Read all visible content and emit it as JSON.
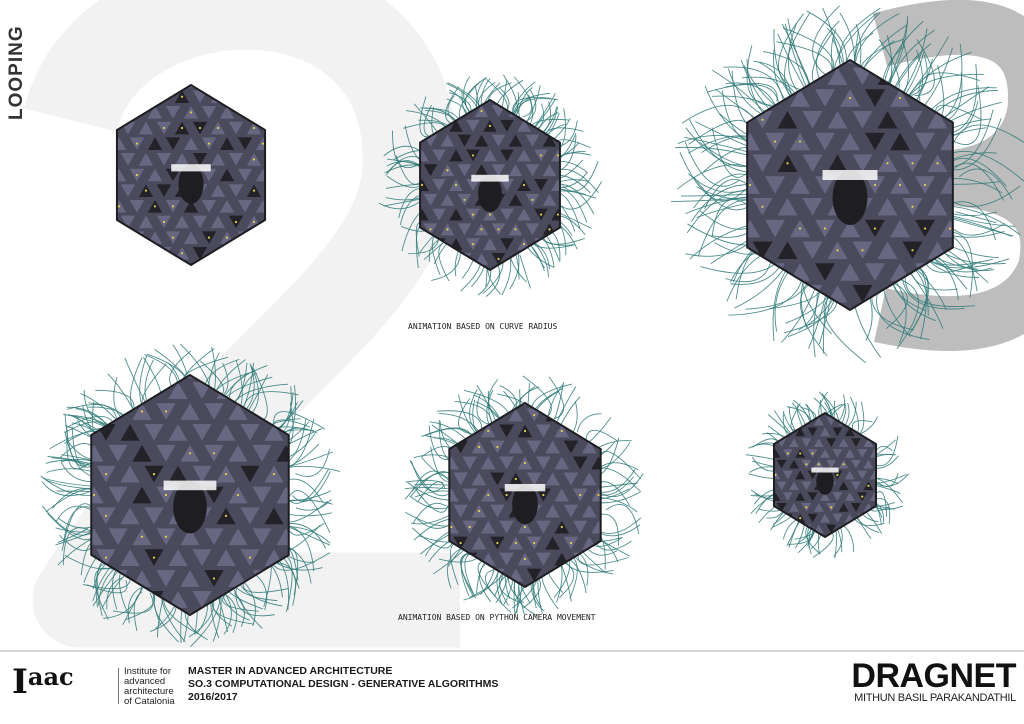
{
  "background": {
    "glyph_left": "2",
    "glyph_right": "3"
  },
  "side_title": "LOOPING",
  "captions": {
    "top": "ANIMATION BASED ON CURVE RADIUS",
    "bottom": "ANIMATION BASED ON PYTHON CAMERA MOVEMENT"
  },
  "colors": {
    "core": "#4a4a5c",
    "triangle": "#6a6a86",
    "dark": "#1e1e22",
    "strand": "#2f7a78",
    "node": "#e3d14a"
  },
  "footer": {
    "logo_main": "I",
    "logo_sup": "aac",
    "institute_lines": [
      "Institute for",
      "advanced",
      "architecture",
      "of Catalonia"
    ],
    "course_lines": [
      "MASTER IN ADVANCED ARCHITECTURE",
      "SO.3 COMPUTATIONAL DESIGN - GENERATIVE ALGORITHMS",
      "2016/2017"
    ],
    "project_title": "DRAGNET",
    "author": "MITHUN BASIL PARAKANDATHIL"
  }
}
